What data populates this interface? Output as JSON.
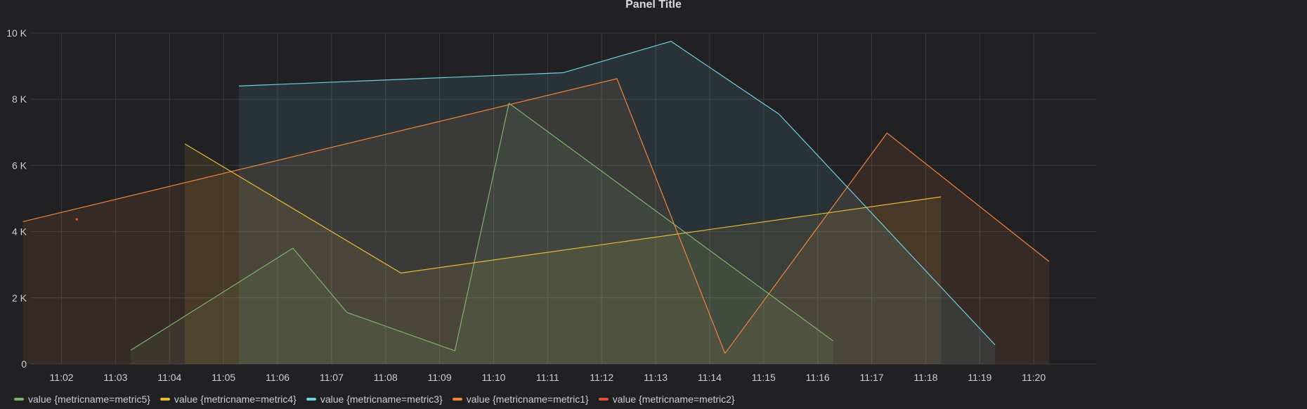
{
  "panel": {
    "title": "Panel Title"
  },
  "colors": {
    "background": "#212124",
    "grid": "#3a3b3e",
    "text": "#ccccdc"
  },
  "legend": [
    {
      "label": "value {metricname=metric5}",
      "color": "#7eb26d"
    },
    {
      "label": "value {metricname=metric4}",
      "color": "#eab839"
    },
    {
      "label": "value {metricname=metric3}",
      "color": "#6ed0e0"
    },
    {
      "label": "value {metricname=metric1}",
      "color": "#ef843c"
    },
    {
      "label": "value {metricname=metric2}",
      "color": "#e24d42"
    }
  ],
  "chart_data": {
    "type": "area",
    "title": "Panel Title",
    "xlabel": "",
    "ylabel": "",
    "x_axis": {
      "range": [
        "11:01:26",
        "11:21:00"
      ],
      "ticks": [
        "11:02",
        "11:03",
        "11:04",
        "11:05",
        "11:06",
        "11:07",
        "11:08",
        "11:09",
        "11:10",
        "11:11",
        "11:12",
        "11:13",
        "11:14",
        "11:15",
        "11:16",
        "11:17",
        "11:18",
        "11:19",
        "11:20"
      ]
    },
    "y_axis": {
      "range": [
        0,
        10000
      ],
      "ticks": [
        0,
        2000,
        4000,
        6000,
        8000,
        10000
      ],
      "tick_labels": [
        "0",
        "2 K",
        "4 K",
        "6 K",
        "8 K",
        "10 K"
      ]
    },
    "grid": true,
    "legend_position": "bottom-left",
    "fill_opacity": 0.1,
    "series": [
      {
        "name": "value {metricname=metric1}",
        "color": "#ef843c",
        "points": [
          [
            "11:01:17",
            4300
          ],
          [
            "11:12:17",
            8620
          ],
          [
            "11:14:17",
            320
          ],
          [
            "11:17:17",
            6980
          ],
          [
            "11:20:17",
            3100
          ]
        ]
      },
      {
        "name": "value {metricname=metric2}",
        "color": "#e24d42",
        "points": [
          [
            "11:02:17",
            4370
          ]
        ]
      },
      {
        "name": "value {metricname=metric5}",
        "color": "#7eb26d",
        "points": [
          [
            "11:03:17",
            420
          ],
          [
            "11:06:17",
            3500
          ],
          [
            "11:07:17",
            1560
          ],
          [
            "11:09:17",
            400
          ],
          [
            "11:10:17",
            7880
          ],
          [
            "11:16:17",
            700
          ]
        ]
      },
      {
        "name": "value {metricname=metric4}",
        "color": "#eab839",
        "points": [
          [
            "11:04:17",
            6650
          ],
          [
            "11:08:17",
            2750
          ],
          [
            "11:18:17",
            5050
          ]
        ]
      },
      {
        "name": "value {metricname=metric3}",
        "color": "#6ed0e0",
        "points": [
          [
            "11:05:17",
            8400
          ],
          [
            "11:11:17",
            8800
          ],
          [
            "11:13:17",
            9750
          ],
          [
            "11:15:17",
            7550
          ],
          [
            "11:19:17",
            580
          ]
        ]
      }
    ]
  }
}
